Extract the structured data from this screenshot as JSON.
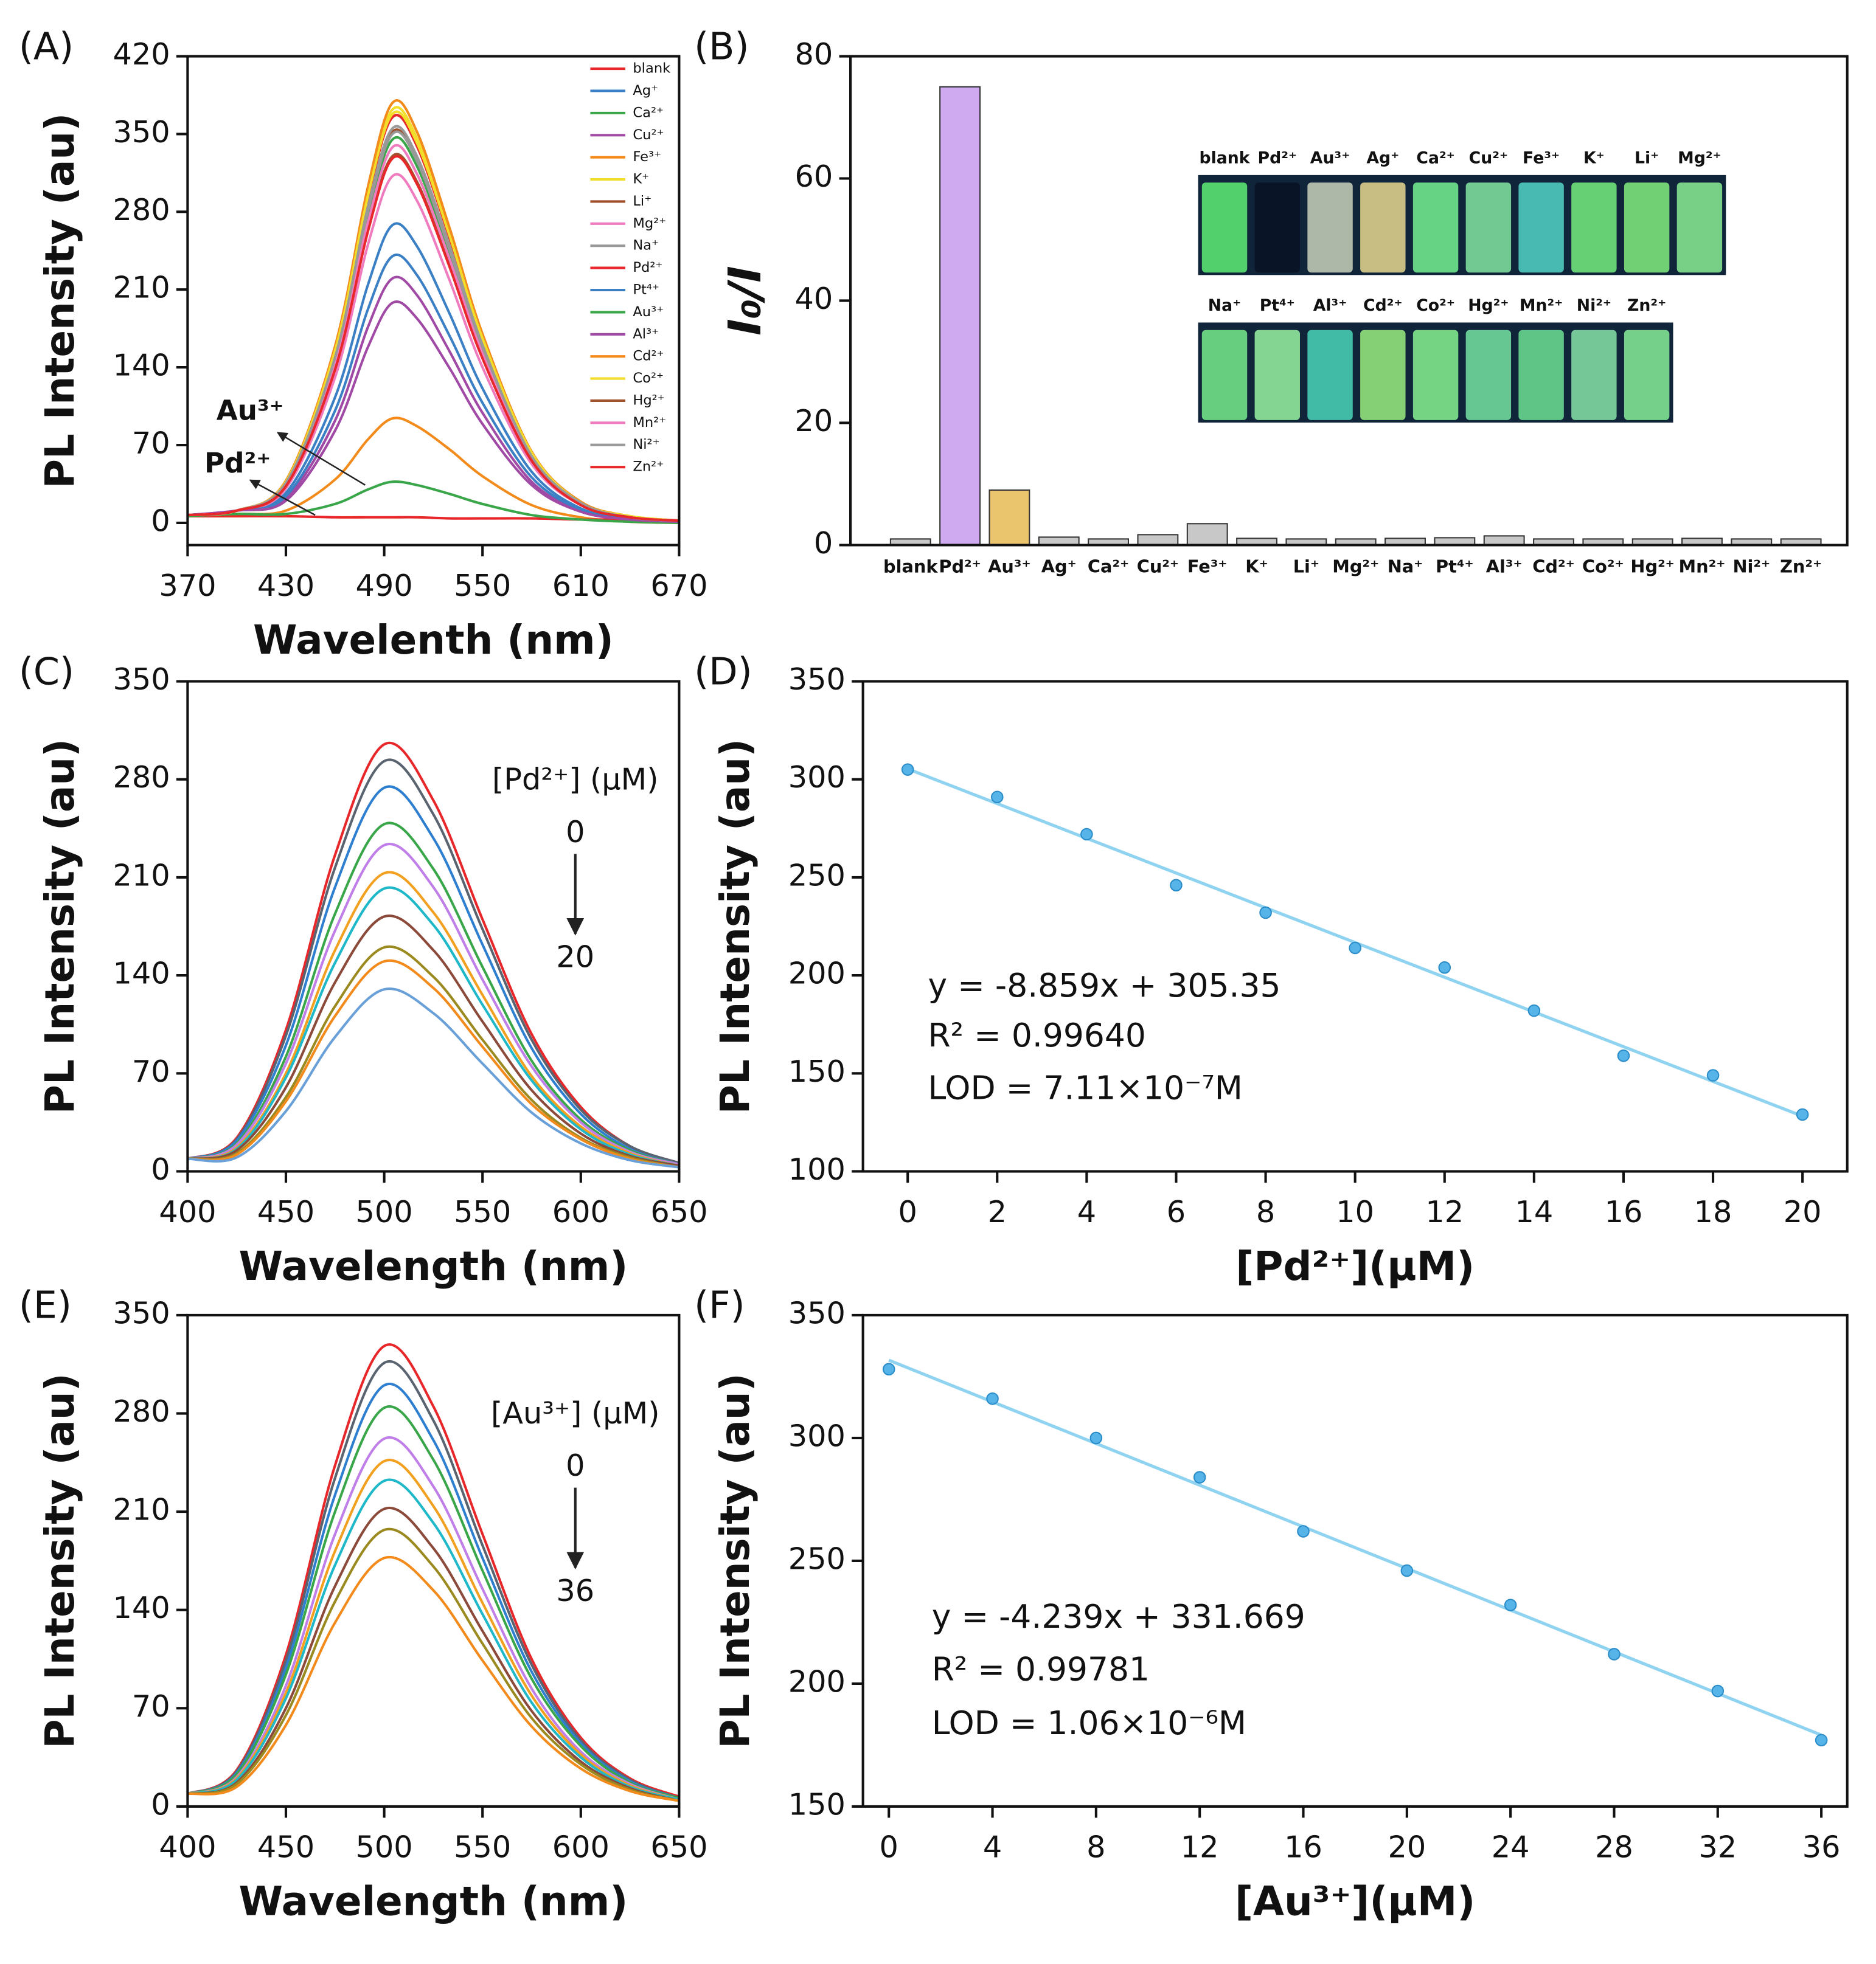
{
  "chart_data": [
    {
      "type": "line",
      "panel_label": "(A)",
      "xlabel": "Wavelenth (nm)",
      "ylabel": "PL Intensity (au)",
      "x": [
        370,
        400,
        430,
        460,
        480,
        495,
        510,
        530,
        550,
        580,
        610,
        640,
        670
      ],
      "xlim": [
        370,
        670
      ],
      "xticks": [
        370,
        430,
        490,
        550,
        610,
        670
      ],
      "ylim": [
        -20,
        420
      ],
      "yticks": [
        0,
        70,
        140,
        210,
        280,
        350,
        420
      ],
      "legend": "upper right",
      "series": [
        {
          "name": "blank",
          "color": "#e8272a",
          "values": [
            7,
            11,
            37,
            153,
            292,
            365,
            339,
            256,
            164,
            62,
            18,
            5,
            2
          ]
        },
        {
          "name": "Ag⁺",
          "color": "#3b7fc4",
          "values": [
            7,
            11,
            27,
            113,
            214,
            268,
            249,
            188,
            121,
            46,
            13,
            4,
            1
          ]
        },
        {
          "name": "Ca²⁺",
          "color": "#3aa64a",
          "values": [
            7,
            11,
            35,
            145,
            276,
            345,
            321,
            242,
            155,
            59,
            17,
            5,
            2
          ]
        },
        {
          "name": "Cu²⁺",
          "color": "#a04aa5",
          "values": [
            7,
            11,
            22,
            92,
            176,
            220,
            205,
            154,
            99,
            37,
            11,
            3,
            1
          ]
        },
        {
          "name": "Fe³⁺",
          "color": "#f28a1c",
          "values": [
            6,
            8,
            11,
            39,
            75,
            94,
            87,
            66,
            42,
            16,
            5,
            1,
            0
          ]
        },
        {
          "name": "K⁺",
          "color": "#f2de2a",
          "values": [
            7,
            11,
            37,
            156,
            298,
            372,
            346,
            260,
            167,
            63,
            19,
            6,
            2
          ]
        },
        {
          "name": "Li⁺",
          "color": "#a0522d",
          "values": [
            7,
            11,
            35,
            148,
            282,
            352,
            327,
            246,
            158,
            60,
            18,
            5,
            2
          ]
        },
        {
          "name": "Mg²⁺",
          "color": "#f07cc0",
          "values": [
            7,
            11,
            31,
            131,
            250,
            312,
            290,
            218,
            140,
            53,
            16,
            5,
            2
          ]
        },
        {
          "name": "Na⁺",
          "color": "#999999",
          "values": [
            7,
            11,
            35,
            147,
            280,
            350,
            326,
            245,
            158,
            60,
            18,
            5,
            2
          ]
        },
        {
          "name": "Pd²⁺",
          "color": "#e8272a",
          "values": [
            6,
            6,
            6,
            5,
            5,
            5,
            5,
            4,
            4,
            4,
            3,
            3,
            2
          ]
        },
        {
          "name": "Pt⁴⁺",
          "color": "#3b7fc4",
          "values": [
            7,
            11,
            24,
            101,
            192,
            240,
            223,
            168,
            108,
            41,
            12,
            4,
            1
          ]
        },
        {
          "name": "Au³⁺",
          "color": "#3aa64a",
          "values": [
            6,
            8,
            8,
            17,
            30,
            37,
            34,
            26,
            17,
            7,
            3,
            1,
            0
          ]
        },
        {
          "name": "Al³⁺",
          "color": "#a04aa5",
          "values": [
            7,
            11,
            20,
            83,
            158,
            198,
            184,
            139,
            89,
            34,
            10,
            3,
            1
          ]
        },
        {
          "name": "Cd²⁺",
          "color": "#f28a1c",
          "values": [
            7,
            11,
            38,
            159,
            302,
            378,
            352,
            265,
            170,
            64,
            19,
            6,
            2
          ]
        },
        {
          "name": "Co²⁺",
          "color": "#f2de2a",
          "values": [
            7,
            11,
            37,
            155,
            294,
            368,
            342,
            258,
            166,
            63,
            18,
            6,
            2
          ]
        },
        {
          "name": "Hg²⁺",
          "color": "#a0522d",
          "values": [
            7,
            11,
            33,
            139,
            264,
            330,
            307,
            231,
            149,
            56,
            17,
            5,
            2
          ]
        },
        {
          "name": "Mn²⁺",
          "color": "#f07cc0",
          "values": [
            7,
            11,
            34,
            142,
            270,
            338,
            314,
            237,
            152,
            57,
            17,
            5,
            2
          ]
        },
        {
          "name": "Ni²⁺",
          "color": "#999999",
          "values": [
            7,
            11,
            36,
            149,
            284,
            355,
            330,
            249,
            160,
            60,
            18,
            5,
            2
          ]
        },
        {
          "name": "Zn²⁺",
          "color": "#e8272a",
          "values": [
            7,
            11,
            33,
            138,
            262,
            328,
            305,
            230,
            148,
            56,
            16,
            5,
            2
          ]
        }
      ],
      "annotations": [
        {
          "text": "Au³⁺",
          "color": "#f28a1c"
        },
        {
          "text": "Pd²⁺",
          "color": "#9b1fe8"
        }
      ]
    },
    {
      "type": "bar",
      "panel_label": "(B)",
      "ylabel": "I₀/I",
      "categories": [
        "blank",
        "Pd²⁺",
        "Au³⁺",
        "Ag⁺",
        "Ca²⁺",
        "Cu²⁺",
        "Fe³⁺",
        "K⁺",
        "Li⁺",
        "Mg²⁺",
        "Na⁺",
        "Pt⁴⁺",
        "Al³⁺",
        "Cd²⁺",
        "Co²⁺",
        "Hg²⁺",
        "Mn²⁺",
        "Ni²⁺",
        "Zn²⁺"
      ],
      "values": [
        1.0,
        75,
        9,
        1.3,
        1.0,
        1.7,
        3.5,
        1.1,
        1.0,
        1.0,
        1.1,
        1.2,
        1.5,
        1.0,
        1.0,
        1.0,
        1.1,
        1.0,
        1.0
      ],
      "colors": [
        "#c8c8c8",
        "#cfaaf0",
        "#ebc46e",
        "#c8c8c8",
        "#c8c8c8",
        "#c8c8c8",
        "#c8c8c8",
        "#c8c8c8",
        "#c8c8c8",
        "#c8c8c8",
        "#c8c8c8",
        "#c8c8c8",
        "#c8c8c8",
        "#c8c8c8",
        "#c8c8c8",
        "#c8c8c8",
        "#c8c8c8",
        "#c8c8c8",
        "#c8c8c8"
      ],
      "ylim": [
        0,
        80
      ],
      "yticks": [
        0,
        20,
        40,
        60,
        80
      ],
      "inset_labels": [
        [
          "blank",
          "Pd²⁺",
          "Au³⁺",
          "Ag⁺",
          "Ca²⁺",
          "Cu²⁺",
          "Fe³⁺",
          "K⁺",
          "Li⁺",
          "Mg²⁺"
        ],
        [
          "Na⁺",
          "Pt⁴⁺",
          "Al³⁺",
          "Cd²⁺",
          "Co²⁺",
          "Hg²⁺",
          "Mn²⁺",
          "Ni²⁺",
          "Zn²⁺"
        ]
      ]
    },
    {
      "type": "line",
      "panel_label": "(C)",
      "xlabel": "Wavelength (nm)",
      "ylabel": "PL Intensity (au)",
      "x": [
        400,
        425,
        450,
        475,
        500,
        525,
        550,
        575,
        600,
        625,
        650
      ],
      "xlim": [
        400,
        650
      ],
      "xticks": [
        400,
        450,
        500,
        550,
        600,
        650
      ],
      "ylim": [
        0,
        350
      ],
      "yticks": [
        0,
        70,
        140,
        210,
        280,
        350
      ],
      "series": [
        {
          "color": "#e8272a",
          "values": [
            9,
            24,
            101,
            226,
            305,
            265,
            180,
            98,
            46,
            18,
            6
          ]
        },
        {
          "color": "#5a6470",
          "values": [
            9,
            23,
            97,
            217,
            293,
            255,
            173,
            94,
            44,
            18,
            6
          ]
        },
        {
          "color": "#2f7fd0",
          "values": [
            9,
            22,
            90,
            203,
            274,
            238,
            162,
            88,
            41,
            16,
            5
          ]
        },
        {
          "color": "#3aa64a",
          "values": [
            9,
            20,
            82,
            184,
            248,
            216,
            146,
            79,
            37,
            15,
            5
          ]
        },
        {
          "color": "#c07ee8",
          "values": [
            9,
            19,
            77,
            172,
            233,
            203,
            137,
            75,
            35,
            14,
            5
          ]
        },
        {
          "color": "#f2a020",
          "values": [
            9,
            17,
            70,
            158,
            213,
            185,
            126,
            68,
            32,
            13,
            4
          ]
        },
        {
          "color": "#1fb8c8",
          "values": [
            9,
            16,
            67,
            149,
            202,
            176,
            119,
            65,
            30,
            12,
            4
          ]
        },
        {
          "color": "#8b4a3a",
          "values": [
            9,
            15,
            60,
            135,
            182,
            158,
            107,
            58,
            27,
            11,
            4
          ]
        },
        {
          "color": "#9a8a20",
          "values": [
            9,
            13,
            53,
            118,
            160,
            139,
            94,
            51,
            24,
            10,
            3
          ]
        },
        {
          "color": "#f28a1c",
          "values": [
            9,
            12,
            50,
            111,
            150,
            131,
            89,
            48,
            23,
            9,
            3
          ]
        },
        {
          "color": "#6aa0d8",
          "values": [
            9,
            10,
            43,
            96,
            130,
            113,
            77,
            42,
            20,
            8,
            3
          ]
        }
      ],
      "conc_label": "[Pd²⁺] (μM)",
      "conc_range": [
        0,
        20
      ]
    },
    {
      "type": "scatter",
      "panel_label": "(D)",
      "xlabel": "[Pd²⁺](μM)",
      "ylabel": "PL Intensity (au)",
      "x": [
        0,
        2,
        4,
        6,
        8,
        10,
        12,
        14,
        16,
        18,
        20
      ],
      "values": [
        305,
        291,
        272,
        246,
        232,
        214,
        204,
        182,
        159,
        149,
        129
      ],
      "color": "#56b4e9",
      "xlim": [
        -1,
        21
      ],
      "xticks": [
        0,
        2,
        4,
        6,
        8,
        10,
        12,
        14,
        16,
        18,
        20
      ],
      "ylim": [
        100,
        350
      ],
      "yticks": [
        100,
        150,
        200,
        250,
        300,
        350
      ],
      "fit_line": {
        "x": [
          0,
          20
        ],
        "values": [
          305.35,
          128.17
        ],
        "color": "#8fd3f0"
      },
      "annotations": [
        {
          "text": "y = -8.859x + 305.35",
          "color": "#111111"
        },
        {
          "text": "R² = 0.99640",
          "color": "#111111"
        },
        {
          "text": "LOD = 7.11×10⁻⁷M",
          "color": "#9b1fe8"
        }
      ]
    },
    {
      "type": "line",
      "panel_label": "(E)",
      "xlabel": "Wavelength (nm)",
      "ylabel": "PL Intensity (au)",
      "x": [
        400,
        425,
        450,
        475,
        500,
        525,
        550,
        575,
        600,
        625,
        650
      ],
      "xlim": [
        400,
        650
      ],
      "xticks": [
        400,
        450,
        500,
        550,
        600,
        650
      ],
      "ylim": [
        0,
        350
      ],
      "yticks": [
        0,
        70,
        140,
        210,
        280,
        350
      ],
      "series": [
        {
          "color": "#e8272a",
          "values": [
            9,
            26,
            108,
            243,
            328,
            285,
            194,
            105,
            49,
            20,
            7
          ]
        },
        {
          "color": "#5a6470",
          "values": [
            9,
            25,
            104,
            234,
            316,
            275,
            186,
            101,
            47,
            19,
            6
          ]
        },
        {
          "color": "#2f7fd0",
          "values": [
            9,
            24,
            99,
            222,
            300,
            261,
            177,
            96,
            45,
            18,
            6
          ]
        },
        {
          "color": "#3aa64a",
          "values": [
            9,
            23,
            94,
            210,
            284,
            247,
            168,
            91,
            43,
            17,
            6
          ]
        },
        {
          "color": "#c07ee8",
          "values": [
            9,
            21,
            86,
            194,
            262,
            228,
            155,
            84,
            39,
            16,
            5
          ]
        },
        {
          "color": "#f2a020",
          "values": [
            9,
            20,
            81,
            182,
            246,
            214,
            145,
            79,
            37,
            15,
            5
          ]
        },
        {
          "color": "#1fb8c8",
          "values": [
            9,
            19,
            77,
            172,
            232,
            202,
            137,
            74,
            35,
            14,
            5
          ]
        },
        {
          "color": "#8b4a3a",
          "values": [
            9,
            17,
            70,
            157,
            212,
            184,
            125,
            68,
            32,
            13,
            4
          ]
        },
        {
          "color": "#9a8a20",
          "values": [
            9,
            16,
            65,
            146,
            197,
            171,
            116,
            63,
            30,
            12,
            4
          ]
        },
        {
          "color": "#f28a1c",
          "values": [
            9,
            14,
            58,
            131,
            177,
            154,
            104,
            57,
            27,
            11,
            4
          ]
        }
      ],
      "conc_label": "[Au³⁺] (μM)",
      "conc_range": [
        0,
        36
      ]
    },
    {
      "type": "scatter",
      "panel_label": "(F)",
      "xlabel": "[Au³⁺](μM)",
      "ylabel": "PL Intensity (au)",
      "x": [
        0,
        4,
        8,
        12,
        16,
        20,
        24,
        28,
        32,
        36
      ],
      "values": [
        328,
        316,
        300,
        284,
        262,
        246,
        232,
        212,
        197,
        177
      ],
      "color": "#56b4e9",
      "xlim": [
        -1,
        37
      ],
      "xticks": [
        0,
        4,
        8,
        12,
        16,
        20,
        24,
        28,
        32,
        36
      ],
      "ylim": [
        150,
        350
      ],
      "yticks": [
        150,
        200,
        250,
        300,
        350
      ],
      "fit_line": {
        "x": [
          0,
          36
        ],
        "values": [
          331.67,
          179.07
        ],
        "color": "#8fd3f0"
      },
      "annotations": [
        {
          "text": "y = -4.239x + 331.669",
          "color": "#111111"
        },
        {
          "text": "R² = 0.99781",
          "color": "#111111"
        },
        {
          "text": "LOD = 1.06×10⁻⁶M",
          "color": "#9b1fe8"
        }
      ]
    }
  ]
}
